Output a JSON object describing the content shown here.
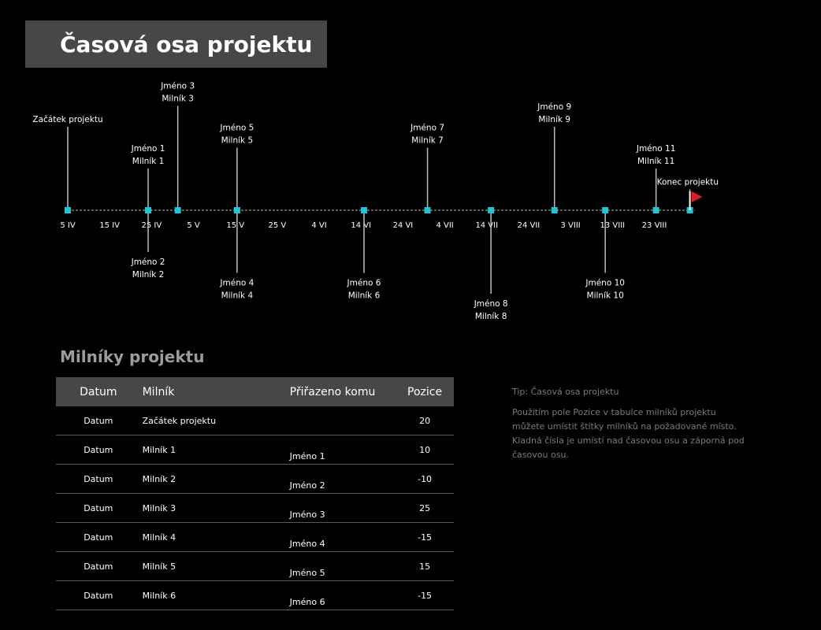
{
  "title": "Časová osa projektu",
  "section_title": "Milníky projektu",
  "table": {
    "headers": [
      "Datum",
      "Milník",
      "Přiřazeno komu",
      "Pozice"
    ],
    "rows": [
      {
        "date": "Datum",
        "milestone": "Začátek projektu",
        "assigned": "",
        "position": "20"
      },
      {
        "date": "Datum",
        "milestone": "Milník 1",
        "assigned": "Jméno 1",
        "position": "10"
      },
      {
        "date": "Datum",
        "milestone": "Milník 2",
        "assigned": "Jméno 2",
        "position": "-10"
      },
      {
        "date": "Datum",
        "milestone": "Milník 3",
        "assigned": "Jméno 3",
        "position": "25"
      },
      {
        "date": "Datum",
        "milestone": "Milník 4",
        "assigned": "Jméno 4",
        "position": "-15"
      },
      {
        "date": "Datum",
        "milestone": "Milník 5",
        "assigned": "Jméno 5",
        "position": "15"
      },
      {
        "date": "Datum",
        "milestone": "Milník 6",
        "assigned": "Jméno 6",
        "position": "-15"
      }
    ]
  },
  "tip": {
    "title": "Tip: Časová osa projektu",
    "body": "Použitím pole Pozice v tabulce milníků projektu můžete umístit štítky milníků na požadované místo. Kladná čísla je umístí nad časovou osu a záporná pod časovou osu."
  },
  "chart_data": {
    "type": "scatter",
    "title": "",
    "xlabel": "",
    "ylabel": "",
    "x_ticks": [
      "5 IV",
      "15 IV",
      "25 IV",
      "5 V",
      "15 V",
      "25 V",
      "4 VI",
      "14 VI",
      "24 VI",
      "4 VII",
      "14 VII",
      "24 VII",
      "3 VIII",
      "13 VIII",
      "23 VIII"
    ],
    "x_range": [
      "2024-04-05",
      "2024-08-23"
    ],
    "marker_color": "#20c4d4",
    "flag_color": "#e31b23",
    "milestones": [
      {
        "date": "2024-04-05",
        "lines": [
          "Začátek projektu"
        ],
        "position": 20
      },
      {
        "date": "2024-04-24",
        "lines": [
          "Jméno 1",
          "Milník 1"
        ],
        "position": 10
      },
      {
        "date": "2024-04-24",
        "lines": [
          "Jméno 2",
          "Milník 2"
        ],
        "position": -10
      },
      {
        "date": "2024-05-01",
        "lines": [
          "Jméno 3",
          "Milník 3"
        ],
        "position": 25
      },
      {
        "date": "2024-05-15",
        "lines": [
          "Jméno 4",
          "Milník 4"
        ],
        "position": -15
      },
      {
        "date": "2024-05-15",
        "lines": [
          "Jméno 5",
          "Milník 5"
        ],
        "position": 15
      },
      {
        "date": "2024-06-14",
        "lines": [
          "Jméno 6",
          "Milník 6"
        ],
        "position": -15
      },
      {
        "date": "2024-06-29",
        "lines": [
          "Jméno 7",
          "Milník 7"
        ],
        "position": 15
      },
      {
        "date": "2024-07-14",
        "lines": [
          "Jméno 8",
          "Milník 8"
        ],
        "position": -20
      },
      {
        "date": "2024-07-29",
        "lines": [
          "Jméno 9",
          "Milník 9"
        ],
        "position": 20
      },
      {
        "date": "2024-08-10",
        "lines": [
          "Jméno 10",
          "Milník 10"
        ],
        "position": -15
      },
      {
        "date": "2024-08-22",
        "lines": [
          "Jméno 11",
          "Milník 11"
        ],
        "position": 10
      },
      {
        "date": "2024-08-30",
        "lines": [
          "Konec projektu"
        ],
        "position": 5,
        "flag": true
      }
    ]
  }
}
